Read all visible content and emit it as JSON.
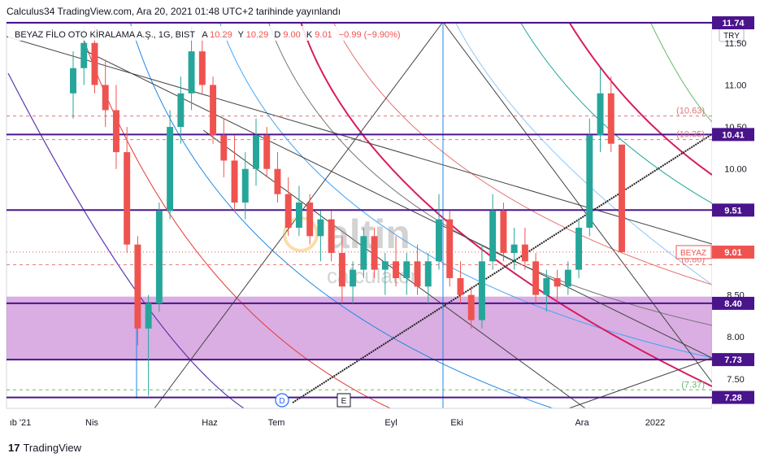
{
  "header": {
    "publish_text": "Calculus34 TradingView.com, Ara 20, 2021 01:48 UTC+2 tarihinde yayınlandı"
  },
  "legend": {
    "symbol": "BEYAZ FİLO OTO KİRALAMA A.Ş., 1G, BIST",
    "a_label": "A",
    "a_value": "10.29",
    "y_label": "Y",
    "y_value": "10.29",
    "d_label": "D",
    "d_value": "9.00",
    "k_label": "K",
    "k_value": "9.01",
    "change": "−0.99 (−9.90%)"
  },
  "currency": "TRY",
  "footer": {
    "brand": "TradingView",
    "brand_mark": "17"
  },
  "watermark": {
    "brand": "altin",
    "sub": "calculator"
  },
  "colors": {
    "up": "#26a69a",
    "down": "#ef5350",
    "level": "#4a148c",
    "zone": "#ce93d8",
    "dashed": "#e57373",
    "price_tag": "#ef5350"
  },
  "chart_data": {
    "type": "candlestick",
    "symbol": "BEYAZ",
    "y_axis_ticks": [
      "11.50",
      "11.00",
      "10.50",
      "10.00",
      "9.50",
      "8.50",
      "8.00",
      "7.50"
    ],
    "x_axis_ticks": [
      "ıb '21",
      "Nis",
      "Haz",
      "Tem",
      "Eyl",
      "Eki",
      "Ara",
      "2022"
    ],
    "ylim": [
      7.15,
      11.75
    ],
    "horizontal_levels": [
      {
        "value": 11.74,
        "label": "11.74",
        "style": "solid"
      },
      {
        "value": 10.41,
        "label": "10.41",
        "style": "solid"
      },
      {
        "value": 9.51,
        "label": "9.51",
        "style": "solid"
      },
      {
        "value": 8.4,
        "label": "8.40",
        "style": "solid"
      },
      {
        "value": 7.73,
        "label": "7.73",
        "style": "solid"
      },
      {
        "value": 7.28,
        "label": "7.28",
        "style": "solid"
      }
    ],
    "dashed_levels": [
      {
        "value": 10.63,
        "label": "(10.63)"
      },
      {
        "value": 10.35,
        "label": "(10.35)"
      },
      {
        "value": 8.86,
        "label": "(8.86)"
      },
      {
        "value": 7.37,
        "label": "(7.37)"
      }
    ],
    "zone": {
      "from": 7.73,
      "to": 8.48
    },
    "last_price": {
      "label": "BEYAZ",
      "value": 9.01
    },
    "markers": [
      "D",
      "E"
    ],
    "candles": [
      {
        "o": 10.9,
        "h": 11.4,
        "l": 10.6,
        "c": 11.2
      },
      {
        "o": 11.2,
        "h": 11.7,
        "l": 11.0,
        "c": 11.5
      },
      {
        "o": 11.5,
        "h": 11.7,
        "l": 10.9,
        "c": 11.0
      },
      {
        "o": 11.0,
        "h": 11.3,
        "l": 10.5,
        "c": 10.7
      },
      {
        "o": 10.7,
        "h": 11.0,
        "l": 10.0,
        "c": 10.2
      },
      {
        "o": 10.2,
        "h": 10.5,
        "l": 9.0,
        "c": 9.1
      },
      {
        "o": 9.1,
        "h": 9.2,
        "l": 7.9,
        "c": 8.1
      },
      {
        "o": 8.1,
        "h": 8.5,
        "l": 7.3,
        "c": 8.4
      },
      {
        "o": 8.4,
        "h": 9.6,
        "l": 8.3,
        "c": 9.5
      },
      {
        "o": 9.5,
        "h": 10.7,
        "l": 9.4,
        "c": 10.5
      },
      {
        "o": 10.5,
        "h": 11.1,
        "l": 10.3,
        "c": 10.9
      },
      {
        "o": 10.9,
        "h": 11.7,
        "l": 10.7,
        "c": 11.4
      },
      {
        "o": 11.4,
        "h": 11.7,
        "l": 10.9,
        "c": 11.0
      },
      {
        "o": 11.0,
        "h": 11.1,
        "l": 10.3,
        "c": 10.4
      },
      {
        "o": 10.4,
        "h": 10.6,
        "l": 9.9,
        "c": 10.1
      },
      {
        "o": 10.1,
        "h": 10.4,
        "l": 9.5,
        "c": 9.6
      },
      {
        "o": 9.6,
        "h": 10.2,
        "l": 9.4,
        "c": 10.0
      },
      {
        "o": 10.0,
        "h": 10.6,
        "l": 9.8,
        "c": 10.4
      },
      {
        "o": 10.4,
        "h": 10.5,
        "l": 9.9,
        "c": 10.0
      },
      {
        "o": 10.0,
        "h": 10.2,
        "l": 9.6,
        "c": 9.7
      },
      {
        "o": 9.7,
        "h": 9.9,
        "l": 9.2,
        "c": 9.3
      },
      {
        "o": 9.3,
        "h": 9.8,
        "l": 9.2,
        "c": 9.6
      },
      {
        "o": 9.6,
        "h": 9.7,
        "l": 9.1,
        "c": 9.2
      },
      {
        "o": 9.2,
        "h": 9.5,
        "l": 8.9,
        "c": 9.4
      },
      {
        "o": 9.4,
        "h": 9.5,
        "l": 8.9,
        "c": 9.0
      },
      {
        "o": 9.0,
        "h": 9.2,
        "l": 8.4,
        "c": 8.6
      },
      {
        "o": 8.6,
        "h": 8.9,
        "l": 8.4,
        "c": 8.8
      },
      {
        "o": 8.8,
        "h": 9.3,
        "l": 8.7,
        "c": 9.2
      },
      {
        "o": 9.2,
        "h": 9.3,
        "l": 8.7,
        "c": 8.8
      },
      {
        "o": 8.8,
        "h": 9.0,
        "l": 8.5,
        "c": 8.9
      },
      {
        "o": 8.9,
        "h": 9.2,
        "l": 8.6,
        "c": 8.7
      },
      {
        "o": 8.7,
        "h": 9.0,
        "l": 8.5,
        "c": 8.9
      },
      {
        "o": 8.9,
        "h": 9.1,
        "l": 8.5,
        "c": 8.6
      },
      {
        "o": 8.6,
        "h": 9.0,
        "l": 8.4,
        "c": 8.9
      },
      {
        "o": 8.9,
        "h": 9.7,
        "l": 8.8,
        "c": 9.4
      },
      {
        "o": 9.4,
        "h": 9.5,
        "l": 8.6,
        "c": 8.7
      },
      {
        "o": 8.7,
        "h": 8.9,
        "l": 8.4,
        "c": 8.5
      },
      {
        "o": 8.5,
        "h": 8.6,
        "l": 8.1,
        "c": 8.2
      },
      {
        "o": 8.2,
        "h": 9.1,
        "l": 8.1,
        "c": 8.9
      },
      {
        "o": 8.9,
        "h": 9.7,
        "l": 8.8,
        "c": 9.5
      },
      {
        "o": 9.5,
        "h": 9.6,
        "l": 8.9,
        "c": 9.0
      },
      {
        "o": 9.0,
        "h": 9.3,
        "l": 8.8,
        "c": 9.1
      },
      {
        "o": 9.1,
        "h": 9.3,
        "l": 8.8,
        "c": 8.9
      },
      {
        "o": 8.9,
        "h": 9.0,
        "l": 8.4,
        "c": 8.5
      },
      {
        "o": 8.5,
        "h": 8.8,
        "l": 8.3,
        "c": 8.7
      },
      {
        "o": 8.7,
        "h": 8.8,
        "l": 8.4,
        "c": 8.6
      },
      {
        "o": 8.6,
        "h": 8.9,
        "l": 8.5,
        "c": 8.8
      },
      {
        "o": 8.8,
        "h": 9.4,
        "l": 8.7,
        "c": 9.3
      },
      {
        "o": 9.3,
        "h": 10.6,
        "l": 9.2,
        "c": 10.4
      },
      {
        "o": 10.4,
        "h": 11.2,
        "l": 10.2,
        "c": 10.9
      },
      {
        "o": 10.9,
        "h": 11.1,
        "l": 10.2,
        "c": 10.3
      },
      {
        "o": 10.29,
        "h": 10.29,
        "l": 9.0,
        "c": 9.01
      }
    ]
  }
}
